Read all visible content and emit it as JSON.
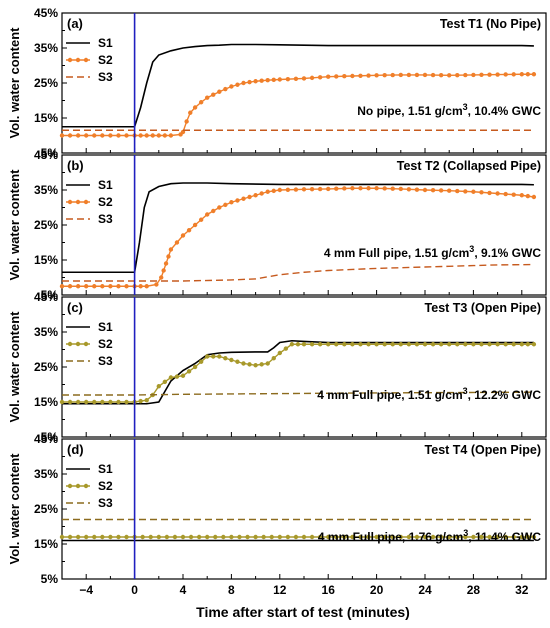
{
  "figure": {
    "xlabel": "Time after start of test (minutes)",
    "ylabel": "Vol. water content",
    "x_ticks": [
      "−4",
      "0",
      "4",
      "8",
      "12",
      "16",
      "20",
      "24",
      "28",
      "32"
    ],
    "y_ticks": [
      "5%",
      "15%",
      "25%",
      "35%",
      "45%"
    ],
    "test_start_line_color": "#1f1fbf"
  },
  "chart_data": [
    {
      "type": "line",
      "panel": "(a)",
      "title": "Test T1 (No Pipe)",
      "annotation_pre": "No pipe, 1.51 g/cm",
      "annotation_sup": "3",
      "annotation_post": ", 10.4% GWC",
      "xlim": [
        -6,
        34
      ],
      "ylim": [
        5,
        45
      ],
      "series": [
        {
          "name": "S1",
          "color": "#000000",
          "style": "solid",
          "points": [
            [
              -6,
              12.5
            ],
            [
              0,
              12.5
            ],
            [
              0.5,
              18
            ],
            [
              1,
              25
            ],
            [
              1.5,
              31
            ],
            [
              2,
              33
            ],
            [
              3,
              34.2
            ],
            [
              4,
              35
            ],
            [
              5,
              35.4
            ],
            [
              6,
              35.7
            ],
            [
              7,
              35.8
            ],
            [
              8,
              36
            ],
            [
              10,
              36
            ],
            [
              12,
              35.9
            ],
            [
              14,
              35.8
            ],
            [
              16,
              35.7
            ],
            [
              20,
              35.7
            ],
            [
              24,
              35.7
            ],
            [
              28,
              35.7
            ],
            [
              32,
              35.7
            ],
            [
              33,
              35.6
            ]
          ]
        },
        {
          "name": "S2",
          "color": "#f07f2a",
          "style": "dotted",
          "points": [
            [
              -6,
              10
            ],
            [
              0,
              10
            ],
            [
              1,
              10
            ],
            [
              2,
              10
            ],
            [
              3,
              10
            ],
            [
              3.8,
              10.3
            ],
            [
              4,
              11
            ],
            [
              4.3,
              14
            ],
            [
              4.6,
              16.5
            ],
            [
              5,
              18
            ],
            [
              5.5,
              19.5
            ],
            [
              6,
              20.8
            ],
            [
              7,
              22.5
            ],
            [
              8,
              24
            ],
            [
              9,
              25
            ],
            [
              10,
              25.5
            ],
            [
              11,
              25.8
            ],
            [
              12,
              26
            ],
            [
              14,
              26.3
            ],
            [
              16,
              26.8
            ],
            [
              18,
              27
            ],
            [
              20,
              27.2
            ],
            [
              22,
              27.3
            ],
            [
              24,
              27.3
            ],
            [
              26,
              27.2
            ],
            [
              28,
              27.3
            ],
            [
              30,
              27.4
            ],
            [
              32,
              27.5
            ],
            [
              33,
              27.5
            ]
          ]
        },
        {
          "name": "S3",
          "color": "#c65a1e",
          "style": "dashed",
          "points": [
            [
              -6,
              11.5
            ],
            [
              0,
              11.5
            ],
            [
              33,
              11.5
            ]
          ]
        }
      ]
    },
    {
      "type": "line",
      "panel": "(b)",
      "title": "Test T2 (Collapsed Pipe)",
      "annotation_pre": "4 mm Full pipe, 1.51 g/cm",
      "annotation_sup": "3",
      "annotation_post": ", 9.1% GWC",
      "xlim": [
        -6,
        34
      ],
      "ylim": [
        5,
        45
      ],
      "series": [
        {
          "name": "S1",
          "color": "#000000",
          "style": "solid",
          "points": [
            [
              -6,
              11.5
            ],
            [
              0,
              11.5
            ],
            [
              0.4,
              20
            ],
            [
              0.8,
              30
            ],
            [
              1.2,
              34.5
            ],
            [
              2,
              36
            ],
            [
              3,
              36.8
            ],
            [
              4,
              37
            ],
            [
              6,
              37
            ],
            [
              8,
              36.8
            ],
            [
              12,
              36.6
            ],
            [
              16,
              36.6
            ],
            [
              20,
              36.6
            ],
            [
              24,
              36.6
            ],
            [
              28,
              36.6
            ],
            [
              32,
              36.6
            ],
            [
              33,
              36.5
            ]
          ]
        },
        {
          "name": "S2",
          "color": "#f07f2a",
          "style": "dotted",
          "points": [
            [
              -6,
              7.5
            ],
            [
              0,
              7.5
            ],
            [
              1,
              7.5
            ],
            [
              1.8,
              8
            ],
            [
              2.2,
              10
            ],
            [
              2.6,
              14
            ],
            [
              3,
              18
            ],
            [
              3.5,
              20
            ],
            [
              4,
              22
            ],
            [
              5,
              25
            ],
            [
              6,
              28
            ],
            [
              7,
              30
            ],
            [
              8,
              31.5
            ],
            [
              9,
              32.5
            ],
            [
              10,
              33.5
            ],
            [
              11,
              34.5
            ],
            [
              12,
              35
            ],
            [
              14,
              35.2
            ],
            [
              16,
              35.3
            ],
            [
              18,
              35.5
            ],
            [
              20,
              35.5
            ],
            [
              22,
              35.3
            ],
            [
              24,
              35
            ],
            [
              26,
              34.8
            ],
            [
              28,
              34.5
            ],
            [
              30,
              34
            ],
            [
              32,
              33.5
            ],
            [
              33,
              33
            ]
          ]
        },
        {
          "name": "S3",
          "color": "#c65a1e",
          "style": "dashed",
          "points": [
            [
              -6,
              9
            ],
            [
              0,
              9
            ],
            [
              4,
              9
            ],
            [
              8,
              9.3
            ],
            [
              10,
              9.6
            ],
            [
              12,
              10.8
            ],
            [
              14,
              11.5
            ],
            [
              16,
              12
            ],
            [
              18,
              12.3
            ],
            [
              20,
              12.6
            ],
            [
              22,
              12.8
            ],
            [
              24,
              13
            ],
            [
              26,
              13.2
            ],
            [
              28,
              13.4
            ],
            [
              30,
              13.6
            ],
            [
              33,
              13.7
            ]
          ]
        }
      ]
    },
    {
      "type": "line",
      "panel": "(c)",
      "title": "Test T3 (Open Pipe)",
      "annotation_pre": "4 mm Full pipe, 1.51 g/cm",
      "annotation_sup": "3",
      "annotation_post": ", 12.2% GWC",
      "xlim": [
        -6,
        34
      ],
      "ylim": [
        5,
        45
      ],
      "series": [
        {
          "name": "S1",
          "color": "#000000",
          "style": "solid",
          "points": [
            [
              -6,
              14.5
            ],
            [
              0,
              14.5
            ],
            [
              1,
              14.5
            ],
            [
              2,
              15
            ],
            [
              2.5,
              18
            ],
            [
              3,
              21
            ],
            [
              4,
              24
            ],
            [
              5,
              26
            ],
            [
              6,
              28.5
            ],
            [
              7,
              29
            ],
            [
              8,
              29.2
            ],
            [
              10,
              29.3
            ],
            [
              11,
              29.3
            ],
            [
              11.5,
              30.5
            ],
            [
              12,
              32
            ],
            [
              13,
              32.5
            ],
            [
              14,
              32.3
            ],
            [
              16,
              32
            ],
            [
              18,
              32
            ],
            [
              20,
              32
            ],
            [
              24,
              32
            ],
            [
              28,
              32
            ],
            [
              32,
              32
            ],
            [
              33,
              32
            ]
          ]
        },
        {
          "name": "S2",
          "color": "#a8992b",
          "style": "dotted",
          "points": [
            [
              -6,
              15
            ],
            [
              0,
              15
            ],
            [
              1,
              15.5
            ],
            [
              1.5,
              17
            ],
            [
              2,
              19.5
            ],
            [
              3,
              22
            ],
            [
              4,
              22.5
            ],
            [
              5,
              25
            ],
            [
              6,
              28
            ],
            [
              7,
              28
            ],
            [
              8,
              27
            ],
            [
              9,
              26
            ],
            [
              10,
              25.5
            ],
            [
              11,
              26
            ],
            [
              12,
              29
            ],
            [
              13,
              31.5
            ],
            [
              14,
              31.5
            ],
            [
              16,
              31.5
            ],
            [
              18,
              31.5
            ],
            [
              20,
              31.5
            ],
            [
              22,
              31.5
            ],
            [
              24,
              31.5
            ],
            [
              26,
              31.5
            ],
            [
              28,
              31.5
            ],
            [
              30,
              31.5
            ],
            [
              32,
              31.5
            ],
            [
              33,
              31.5
            ]
          ]
        },
        {
          "name": "S3",
          "color": "#8c6b1e",
          "style": "dashed",
          "points": [
            [
              -6,
              17
            ],
            [
              0,
              17
            ],
            [
              4,
              17.2
            ],
            [
              12,
              17.4
            ],
            [
              20,
              17.6
            ],
            [
              33,
              17.8
            ]
          ]
        }
      ]
    },
    {
      "type": "line",
      "panel": "(d)",
      "title": "Test T4 (Open Pipe)",
      "annotation_pre": "4 mm Full pipe, 1.76 g/cm",
      "annotation_sup": "3",
      "annotation_post": ", 11.4% GWC",
      "xlim": [
        -6,
        34
      ],
      "ylim": [
        5,
        45
      ],
      "series": [
        {
          "name": "S1",
          "color": "#000000",
          "style": "solid",
          "points": [
            [
              -6,
              16
            ],
            [
              0,
              16
            ],
            [
              33,
              16
            ]
          ]
        },
        {
          "name": "S2",
          "color": "#a8992b",
          "style": "dotted",
          "points": [
            [
              -6,
              17
            ],
            [
              0,
              17
            ],
            [
              4,
              17
            ],
            [
              8,
              17
            ],
            [
              12,
              17
            ],
            [
              16,
              17
            ],
            [
              20,
              17
            ],
            [
              24,
              17
            ],
            [
              28,
              17
            ],
            [
              32,
              17
            ],
            [
              33,
              17
            ]
          ]
        },
        {
          "name": "S3",
          "color": "#8c6b1e",
          "style": "dashed",
          "points": [
            [
              -6,
              22
            ],
            [
              0,
              22
            ],
            [
              33,
              22
            ]
          ]
        }
      ]
    }
  ]
}
